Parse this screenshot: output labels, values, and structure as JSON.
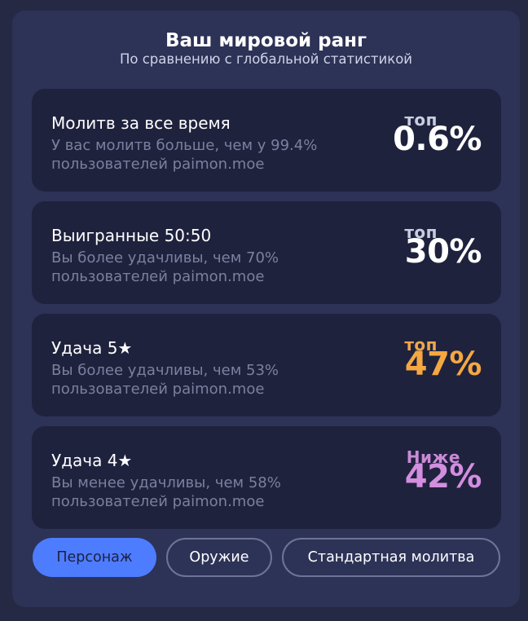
{
  "header": {
    "title": "Ваш мировой ранг",
    "subtitle": "По сравнению с глобальной статистикой"
  },
  "cards": [
    {
      "title": "Молитв за все время",
      "desc_line1": "У вас молитв больше, чем у 99.4%",
      "desc_line2": "пользователей paimon.moe",
      "rank_label": "топ",
      "rank_value": "0.6%",
      "label_color": "#c9cde0",
      "value_color": "#ffffff"
    },
    {
      "title": "Выигранные 50:50",
      "desc_line1": "Вы более удачливы, чем 70%",
      "desc_line2": "пользователей paimon.moe",
      "rank_label": "топ",
      "rank_value": "30%",
      "label_color": "#c9cde0",
      "value_color": "#ffffff"
    },
    {
      "title": "Удача 5★",
      "desc_line1": "Вы более удачливы, чем 53%",
      "desc_line2": "пользователей paimon.moe",
      "rank_label": "топ",
      "rank_value": "47%",
      "label_color": "#f0a64a",
      "value_color": "#f5a742"
    },
    {
      "title": "Удача 4★",
      "desc_line1": "Вы менее удачливы, чем 58%",
      "desc_line2": "пользователей paimon.moe",
      "rank_label": "Ниже",
      "rank_value": "42%",
      "label_color": "#c98ad6",
      "value_color": "#d38ee0"
    }
  ],
  "tabs": {
    "character": "Персонаж",
    "weapon": "Оружие",
    "standard": "Стандартная молитва"
  },
  "colors": {
    "accent": "#4e7cff",
    "panel": "#2d3257",
    "card": "#1f223d"
  }
}
